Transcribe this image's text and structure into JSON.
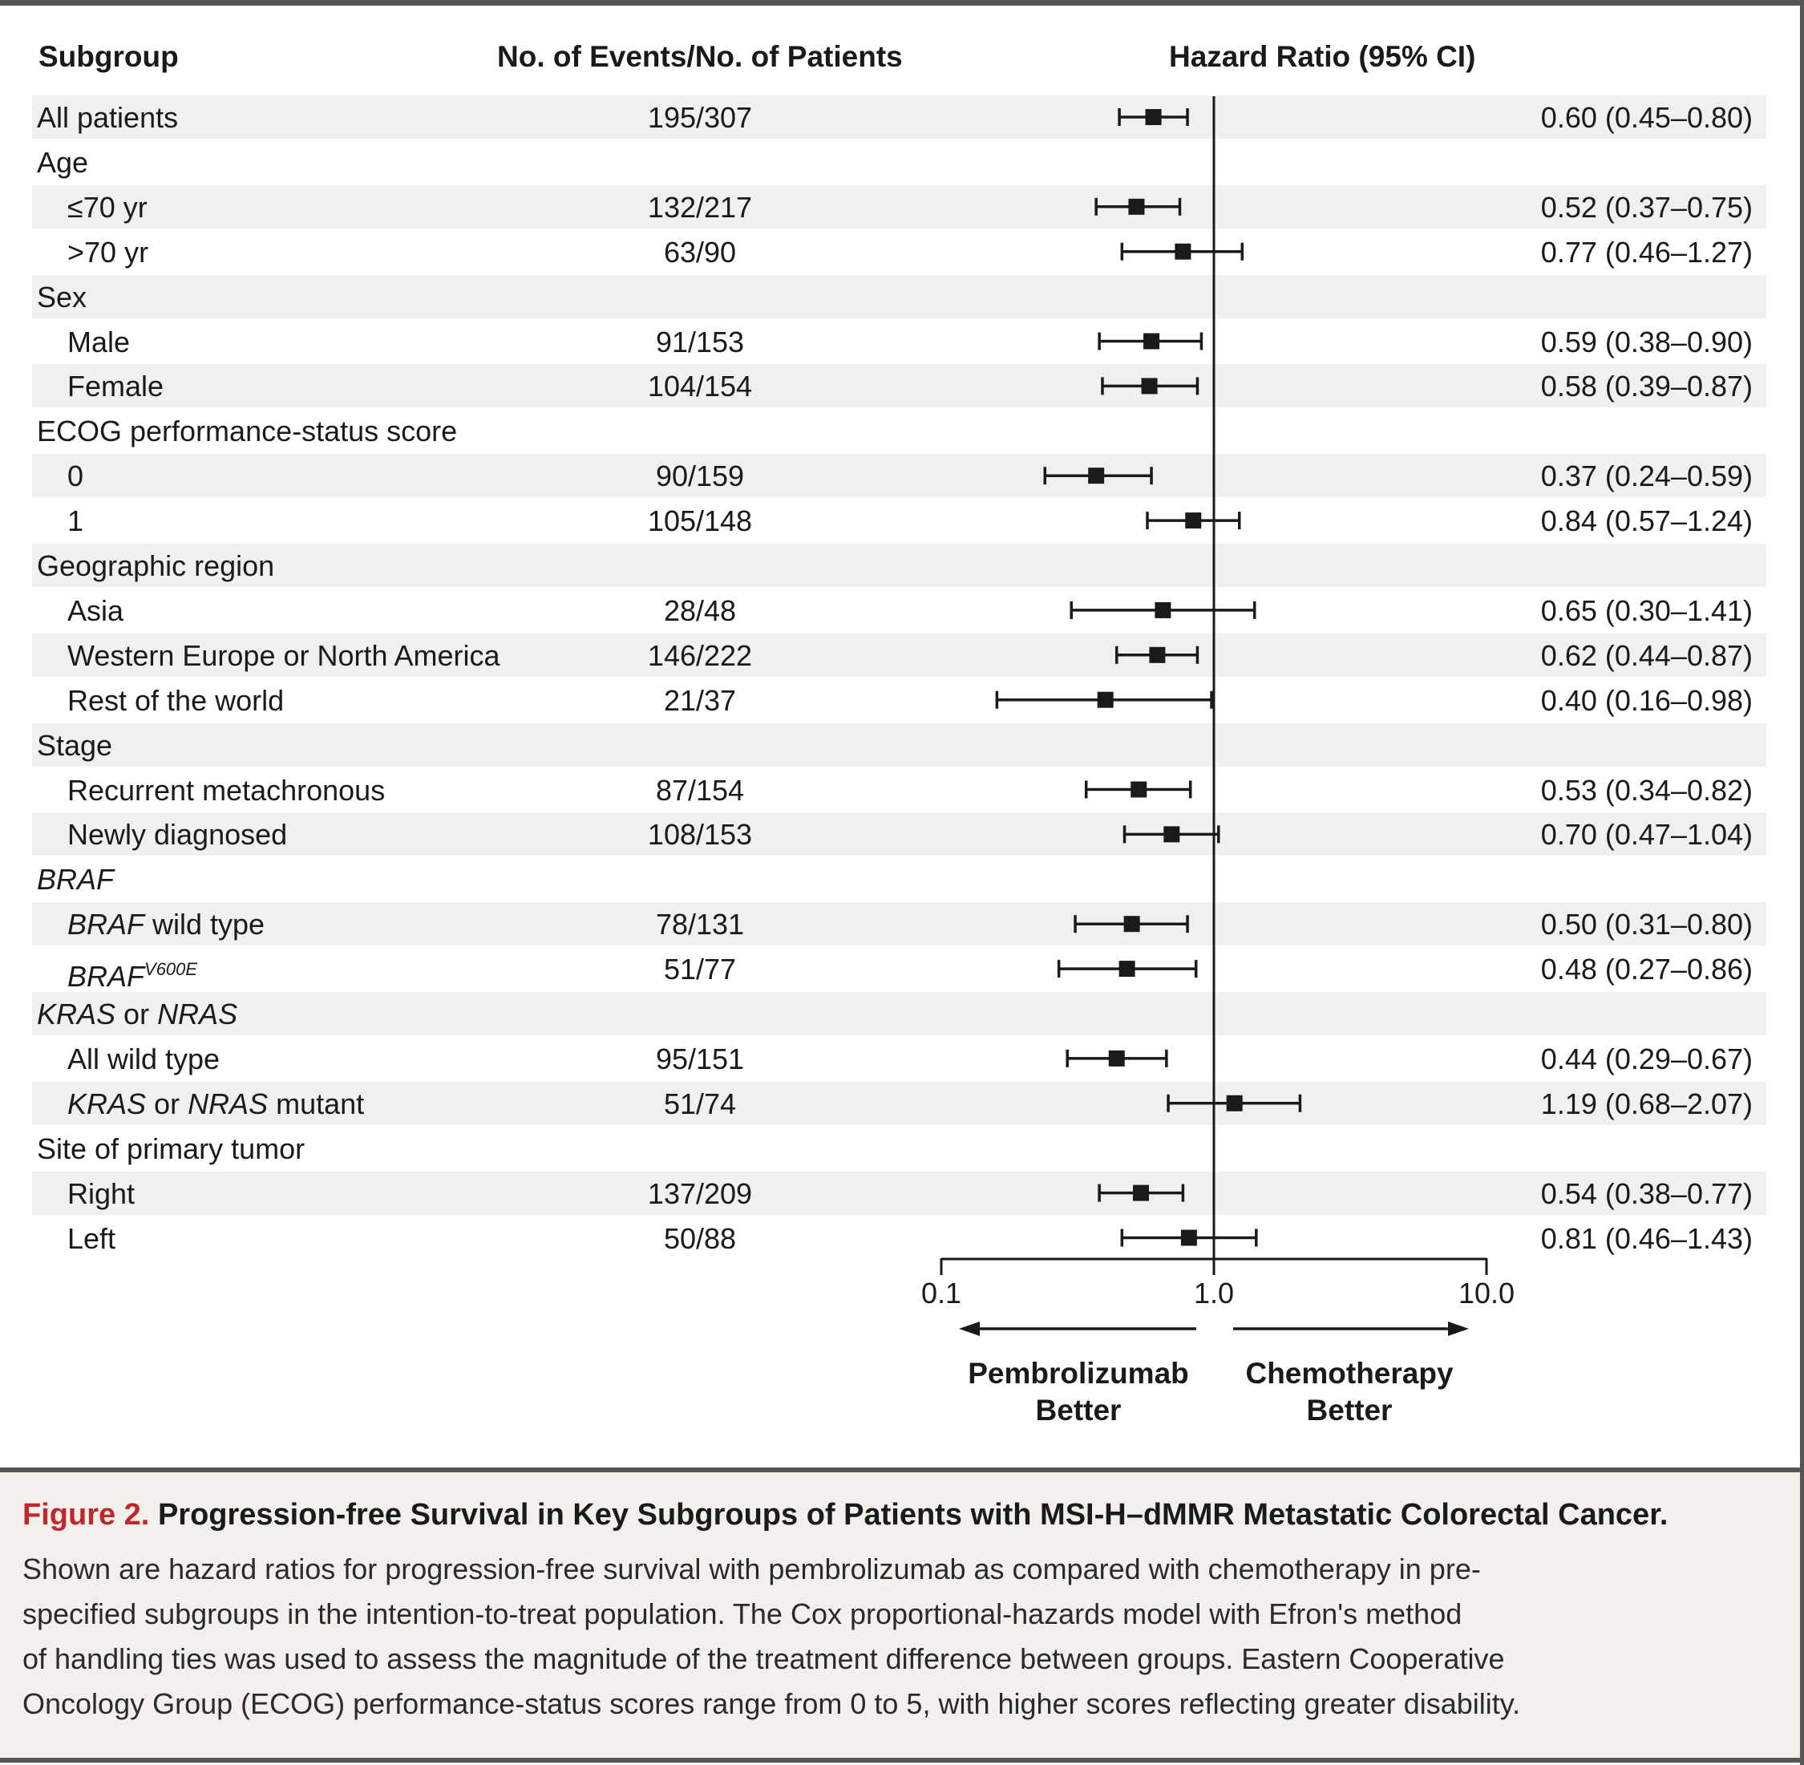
{
  "headers": {
    "subgroup": "Subgroup",
    "events": "No. of Events/No. of Patients",
    "hr": "Hazard Ratio (95% CI)"
  },
  "rows": [
    {
      "label": [
        {
          "t": "All patients"
        }
      ],
      "indent": false,
      "events": "195/307",
      "hr_text": "0.60 (0.45–0.80)"
    },
    {
      "label": [
        {
          "t": "Age"
        }
      ],
      "indent": false,
      "events": "",
      "hr_text": ""
    },
    {
      "label": [
        {
          "t": "≤70 yr"
        }
      ],
      "indent": true,
      "events": "132/217",
      "hr_text": "0.52 (0.37–0.75)"
    },
    {
      "label": [
        {
          "t": ">70 yr"
        }
      ],
      "indent": true,
      "events": "63/90",
      "hr_text": "0.77 (0.46–1.27)"
    },
    {
      "label": [
        {
          "t": "Sex"
        }
      ],
      "indent": false,
      "events": "",
      "hr_text": ""
    },
    {
      "label": [
        {
          "t": "Male"
        }
      ],
      "indent": true,
      "events": "91/153",
      "hr_text": "0.59 (0.38–0.90)"
    },
    {
      "label": [
        {
          "t": "Female"
        }
      ],
      "indent": true,
      "events": "104/154",
      "hr_text": "0.58 (0.39–0.87)"
    },
    {
      "label": [
        {
          "t": "ECOG performance-status score"
        }
      ],
      "indent": false,
      "events": "",
      "hr_text": ""
    },
    {
      "label": [
        {
          "t": "0"
        }
      ],
      "indent": true,
      "events": "90/159",
      "hr_text": "0.37 (0.24–0.59)"
    },
    {
      "label": [
        {
          "t": "1"
        }
      ],
      "indent": true,
      "events": "105/148",
      "hr_text": "0.84 (0.57–1.24)"
    },
    {
      "label": [
        {
          "t": "Geographic region"
        }
      ],
      "indent": false,
      "events": "",
      "hr_text": ""
    },
    {
      "label": [
        {
          "t": "Asia"
        }
      ],
      "indent": true,
      "events": "28/48",
      "hr_text": "0.65 (0.30–1.41)"
    },
    {
      "label": [
        {
          "t": "Western Europe or North America"
        }
      ],
      "indent": true,
      "events": "146/222",
      "hr_text": "0.62 (0.44–0.87)"
    },
    {
      "label": [
        {
          "t": "Rest of the world"
        }
      ],
      "indent": true,
      "events": "21/37",
      "hr_text": "0.40 (0.16–0.98)"
    },
    {
      "label": [
        {
          "t": "Stage"
        }
      ],
      "indent": false,
      "events": "",
      "hr_text": ""
    },
    {
      "label": [
        {
          "t": "Recurrent metachronous"
        }
      ],
      "indent": true,
      "events": "87/154",
      "hr_text": "0.53 (0.34–0.82)"
    },
    {
      "label": [
        {
          "t": "Newly diagnosed"
        }
      ],
      "indent": true,
      "events": "108/153",
      "hr_text": "0.70 (0.47–1.04)"
    },
    {
      "label": [
        {
          "t": "BRAF",
          "i": true
        }
      ],
      "indent": false,
      "events": "",
      "hr_text": ""
    },
    {
      "label": [
        {
          "t": "BRAF",
          "i": true
        },
        {
          "t": " wild type"
        }
      ],
      "indent": true,
      "events": "78/131",
      "hr_text": "0.50 (0.31–0.80)"
    },
    {
      "label": [
        {
          "t": "BRAF",
          "i": true
        },
        {
          "t": "V600E",
          "i": true,
          "sup": true
        }
      ],
      "indent": true,
      "events": "51/77",
      "hr_text": "0.48 (0.27–0.86)"
    },
    {
      "label": [
        {
          "t": "KRAS",
          "i": true
        },
        {
          "t": " or "
        },
        {
          "t": "NRAS",
          "i": true
        }
      ],
      "indent": false,
      "events": "",
      "hr_text": ""
    },
    {
      "label": [
        {
          "t": "All wild type"
        }
      ],
      "indent": true,
      "events": "95/151",
      "hr_text": "0.44 (0.29–0.67)"
    },
    {
      "label": [
        {
          "t": "KRAS",
          "i": true
        },
        {
          "t": " or "
        },
        {
          "t": "NRAS",
          "i": true
        },
        {
          "t": " mutant"
        }
      ],
      "indent": true,
      "events": "51/74",
      "hr_text": "1.19 (0.68–2.07)"
    },
    {
      "label": [
        {
          "t": "Site of primary tumor"
        }
      ],
      "indent": false,
      "events": "",
      "hr_text": ""
    },
    {
      "label": [
        {
          "t": "Right"
        }
      ],
      "indent": true,
      "events": "137/209",
      "hr_text": "0.54 (0.38–0.77)"
    },
    {
      "label": [
        {
          "t": "Left"
        }
      ],
      "indent": true,
      "events": "50/88",
      "hr_text": "0.81 (0.46–1.43)"
    }
  ],
  "chart_data": {
    "type": "scatter",
    "subtype": "forest",
    "x_scale": "log",
    "xlim": [
      0.1,
      10.0
    ],
    "xticks": [
      "0.1",
      "1.0",
      "10.0"
    ],
    "reference_line": 1.0,
    "direction_labels": {
      "left": [
        "Pembrolizumab",
        "Better"
      ],
      "right": [
        "Chemotherapy",
        "Better"
      ]
    },
    "points": [
      {
        "row": 0,
        "hr": 0.6,
        "lo": 0.45,
        "hi": 0.8
      },
      {
        "row": 2,
        "hr": 0.52,
        "lo": 0.37,
        "hi": 0.75
      },
      {
        "row": 3,
        "hr": 0.77,
        "lo": 0.46,
        "hi": 1.27
      },
      {
        "row": 5,
        "hr": 0.59,
        "lo": 0.38,
        "hi": 0.9
      },
      {
        "row": 6,
        "hr": 0.58,
        "lo": 0.39,
        "hi": 0.87
      },
      {
        "row": 8,
        "hr": 0.37,
        "lo": 0.24,
        "hi": 0.59
      },
      {
        "row": 9,
        "hr": 0.84,
        "lo": 0.57,
        "hi": 1.24
      },
      {
        "row": 11,
        "hr": 0.65,
        "lo": 0.3,
        "hi": 1.41
      },
      {
        "row": 12,
        "hr": 0.62,
        "lo": 0.44,
        "hi": 0.87
      },
      {
        "row": 13,
        "hr": 0.4,
        "lo": 0.16,
        "hi": 0.98
      },
      {
        "row": 15,
        "hr": 0.53,
        "lo": 0.34,
        "hi": 0.82
      },
      {
        "row": 16,
        "hr": 0.7,
        "lo": 0.47,
        "hi": 1.04
      },
      {
        "row": 18,
        "hr": 0.5,
        "lo": 0.31,
        "hi": 0.8
      },
      {
        "row": 19,
        "hr": 0.48,
        "lo": 0.27,
        "hi": 0.86
      },
      {
        "row": 21,
        "hr": 0.44,
        "lo": 0.29,
        "hi": 0.67
      },
      {
        "row": 22,
        "hr": 1.19,
        "lo": 0.68,
        "hi": 2.07
      },
      {
        "row": 24,
        "hr": 0.54,
        "lo": 0.38,
        "hi": 0.77
      },
      {
        "row": 25,
        "hr": 0.81,
        "lo": 0.46,
        "hi": 1.43
      }
    ]
  },
  "caption": {
    "figure_label": "Figure 2.",
    "title": "Progression-free Survival in Key Subgroups of Patients with MSI-H–dMMR Metastatic Colorectal Cancer.",
    "lines": [
      "Shown are hazard ratios for progression-free survival with pembrolizumab as compared with chemotherapy in pre-",
      "specified subgroups in the intention-to-treat population. The Cox proportional-hazards model with Efron's method",
      "of handling ties was used to assess the magnitude of the treatment difference between groups. Eastern Cooperative",
      "Oncology Group (ECOG) performance-status scores range from 0 to 5, with higher scores reflecting greater disability."
    ]
  },
  "colors": {
    "figure_label": "#c0272d",
    "stripe": "#f0f0f0",
    "caption_bg": "#f3f0eb",
    "marks": "#1a1a1a"
  }
}
